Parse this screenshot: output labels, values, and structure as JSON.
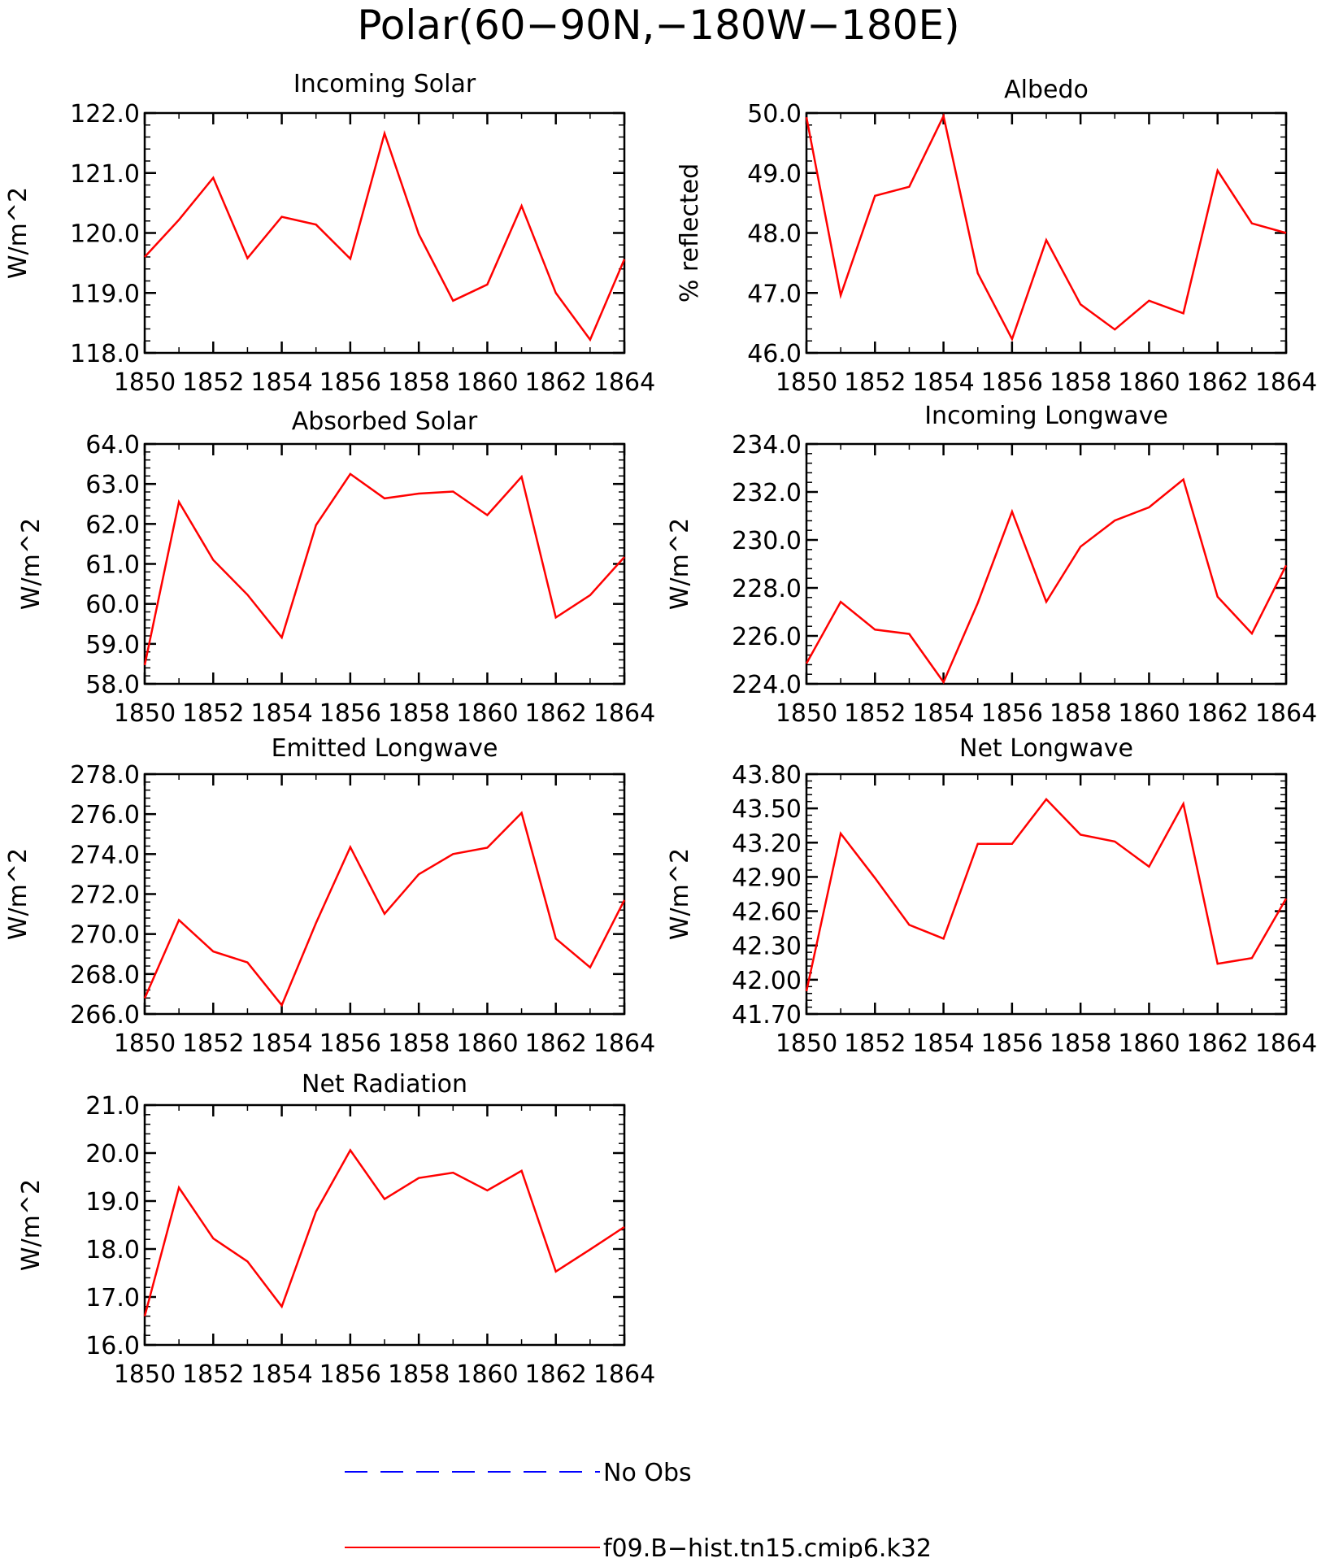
{
  "figure": {
    "title": "Polar(60−90N,−180W−180E)",
    "colors": {
      "model": "#ff0000",
      "obs": "#0000ff",
      "axes": "#000000"
    }
  },
  "legend": {
    "items": [
      {
        "label": "No Obs",
        "style": "dashed",
        "color": "#0000ff"
      },
      {
        "label": "f09.B−hist.tn15.cmip6.k32",
        "style": "solid",
        "color": "#ff0000"
      }
    ]
  },
  "chart_data": [
    {
      "type": "line",
      "title": "Incoming Solar",
      "ylabel": "W/m^2",
      "xlim": [
        1850,
        1864
      ],
      "xticks": [
        1850,
        1852,
        1854,
        1856,
        1858,
        1860,
        1862,
        1864
      ],
      "ylim": [
        118.0,
        122.0
      ],
      "yticks": [
        "118.0",
        "119.0",
        "120.0",
        "121.0",
        "122.0"
      ],
      "x": [
        1850,
        1851,
        1852,
        1853,
        1854,
        1855,
        1856,
        1857,
        1858,
        1859,
        1860,
        1861,
        1862,
        1863,
        1864
      ],
      "series": [
        {
          "values": [
            119.6,
            120.22,
            120.92,
            119.58,
            120.27,
            120.14,
            119.57,
            121.66,
            119.98,
            118.87,
            119.14,
            120.45,
            119.0,
            118.22,
            119.56
          ]
        }
      ]
    },
    {
      "type": "line",
      "title": "Albedo",
      "ylabel": "% reflected",
      "xlim": [
        1850,
        1864
      ],
      "xticks": [
        1850,
        1852,
        1854,
        1856,
        1858,
        1860,
        1862,
        1864
      ],
      "ylim": [
        46.0,
        50.0
      ],
      "yticks": [
        "46.0",
        "47.0",
        "48.0",
        "49.0",
        "50.0"
      ],
      "x": [
        1850,
        1851,
        1852,
        1853,
        1854,
        1855,
        1856,
        1857,
        1858,
        1859,
        1860,
        1861,
        1862,
        1863,
        1864
      ],
      "series": [
        {
          "values": [
            49.93,
            46.96,
            48.62,
            48.77,
            49.95,
            47.33,
            46.23,
            47.88,
            46.81,
            46.39,
            46.87,
            46.66,
            49.04,
            48.16,
            48.0
          ]
        }
      ]
    },
    {
      "type": "line",
      "title": "Absorbed Solar",
      "ylabel": "W/m^2",
      "xlim": [
        1850,
        1864
      ],
      "xticks": [
        1850,
        1852,
        1854,
        1856,
        1858,
        1860,
        1862,
        1864
      ],
      "ylim": [
        58.0,
        64.0
      ],
      "yticks": [
        "58.0",
        "59.0",
        "60.0",
        "61.0",
        "62.0",
        "63.0",
        "64.0"
      ],
      "x": [
        1850,
        1851,
        1852,
        1853,
        1854,
        1855,
        1856,
        1857,
        1858,
        1859,
        1860,
        1861,
        1862,
        1863,
        1864
      ],
      "series": [
        {
          "values": [
            58.47,
            62.55,
            61.1,
            60.23,
            59.16,
            61.97,
            63.25,
            62.64,
            62.76,
            62.81,
            62.22,
            63.18,
            59.66,
            60.22,
            61.17
          ]
        }
      ]
    },
    {
      "type": "line",
      "title": "Incoming Longwave",
      "ylabel": "W/m^2",
      "xlim": [
        1850,
        1864
      ],
      "xticks": [
        1850,
        1852,
        1854,
        1856,
        1858,
        1860,
        1862,
        1864
      ],
      "ylim": [
        224.0,
        234.0
      ],
      "yticks": [
        "224.0",
        "226.0",
        "228.0",
        "230.0",
        "232.0",
        "234.0"
      ],
      "x": [
        1850,
        1851,
        1852,
        1853,
        1854,
        1855,
        1856,
        1857,
        1858,
        1859,
        1860,
        1861,
        1862,
        1863,
        1864
      ],
      "series": [
        {
          "values": [
            224.85,
            227.42,
            226.26,
            226.08,
            224.07,
            227.37,
            231.18,
            227.42,
            229.72,
            230.81,
            231.36,
            232.52,
            227.63,
            226.1,
            228.94
          ]
        }
      ]
    },
    {
      "type": "line",
      "title": "Emitted Longwave",
      "ylabel": "W/m^2",
      "xlim": [
        1850,
        1864
      ],
      "xticks": [
        1850,
        1852,
        1854,
        1856,
        1858,
        1860,
        1862,
        1864
      ],
      "ylim": [
        266.0,
        278.0
      ],
      "yticks": [
        "266.0",
        "268.0",
        "270.0",
        "272.0",
        "274.0",
        "276.0",
        "278.0"
      ],
      "x": [
        1850,
        1851,
        1852,
        1853,
        1854,
        1855,
        1856,
        1857,
        1858,
        1859,
        1860,
        1861,
        1862,
        1863,
        1864
      ],
      "series": [
        {
          "values": [
            266.79,
            270.7,
            269.13,
            268.58,
            266.44,
            270.55,
            274.35,
            271.01,
            272.99,
            274.0,
            274.32,
            276.06,
            269.77,
            268.33,
            271.7
          ]
        }
      ]
    },
    {
      "type": "line",
      "title": "Net Longwave",
      "ylabel": "W/m^2",
      "xlim": [
        1850,
        1864
      ],
      "xticks": [
        1850,
        1852,
        1854,
        1856,
        1858,
        1860,
        1862,
        1864
      ],
      "ylim": [
        41.7,
        43.8
      ],
      "yticks": [
        "41.70",
        "42.00",
        "42.30",
        "42.60",
        "42.90",
        "43.20",
        "43.50",
        "43.80"
      ],
      "x": [
        1850,
        1851,
        1852,
        1853,
        1854,
        1855,
        1856,
        1857,
        1858,
        1859,
        1860,
        1861,
        1862,
        1863,
        1864
      ],
      "series": [
        {
          "values": [
            41.9,
            43.28,
            42.89,
            42.48,
            42.36,
            43.19,
            43.19,
            43.58,
            43.27,
            43.21,
            42.99,
            43.54,
            42.14,
            42.19,
            42.71
          ]
        }
      ]
    },
    {
      "type": "line",
      "title": "Net Radiation",
      "ylabel": "W/m^2",
      "xlim": [
        1850,
        1864
      ],
      "xticks": [
        1850,
        1852,
        1854,
        1856,
        1858,
        1860,
        1862,
        1864
      ],
      "ylim": [
        16.0,
        21.0
      ],
      "yticks": [
        "16.0",
        "17.0",
        "18.0",
        "19.0",
        "20.0",
        "21.0"
      ],
      "x": [
        1850,
        1851,
        1852,
        1853,
        1854,
        1855,
        1856,
        1857,
        1858,
        1859,
        1860,
        1861,
        1862,
        1863,
        1864
      ],
      "series": [
        {
          "values": [
            16.6,
            19.28,
            18.22,
            17.74,
            16.8,
            18.78,
            20.06,
            19.04,
            19.48,
            19.59,
            19.22,
            19.63,
            17.53,
            17.99,
            18.46
          ]
        }
      ]
    }
  ]
}
